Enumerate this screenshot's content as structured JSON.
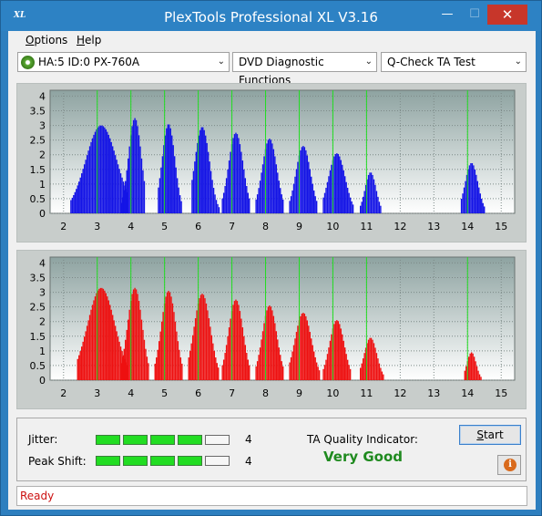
{
  "window": {
    "logo_text": "XL",
    "title": "PlexTools Professional XL V3.16",
    "min_glyph": "—",
    "max_glyph": "☐",
    "close_glyph": "✕"
  },
  "menu": {
    "options_first": "O",
    "options_rest": "ptions",
    "help_first": "H",
    "help_rest": "elp"
  },
  "toolbar": {
    "drive": "HA:5 ID:0  PX-760A",
    "function": "DVD Diagnostic Functions",
    "test": "Q-Check TA Test",
    "drive_icon": "disc-icon",
    "arrow_glyph": "⌄"
  },
  "charts": {
    "y_ticks": [
      "4",
      "3.5",
      "3",
      "2.5",
      "2",
      "1.5",
      "1",
      "0.5",
      "0"
    ],
    "x_ticks": [
      "2",
      "3",
      "4",
      "5",
      "6",
      "7",
      "8",
      "9",
      "10",
      "11",
      "12",
      "13",
      "14",
      "15"
    ]
  },
  "chart_data": [
    {
      "type": "bar",
      "name": "top",
      "color": "#1414e6",
      "xlim": [
        1.6,
        15.4
      ],
      "ylim": [
        0,
        4.2
      ],
      "x_ticks": [
        2,
        3,
        4,
        5,
        6,
        7,
        8,
        9,
        10,
        11,
        12,
        13,
        14,
        15
      ],
      "y_ticks": [
        0,
        0.5,
        1,
        1.5,
        2,
        2.5,
        3,
        3.5,
        4
      ],
      "reference_lines": [
        3,
        4,
        5,
        6,
        7,
        8,
        9,
        10,
        11,
        14
      ],
      "peaks": [
        {
          "center": 3.1,
          "height": 3.0,
          "start": 2.2,
          "end": 3.9
        },
        {
          "center": 4.1,
          "height": 3.25,
          "start": 3.7,
          "end": 4.4
        },
        {
          "center": 5.1,
          "height": 3.05,
          "start": 4.8,
          "end": 5.5
        },
        {
          "center": 6.1,
          "height": 2.95,
          "start": 5.8,
          "end": 6.6
        },
        {
          "center": 7.1,
          "height": 2.75,
          "start": 6.7,
          "end": 7.5
        },
        {
          "center": 8.1,
          "height": 2.55,
          "start": 7.7,
          "end": 8.5
        },
        {
          "center": 9.1,
          "height": 2.3,
          "start": 8.7,
          "end": 9.5
        },
        {
          "center": 10.1,
          "height": 2.05,
          "start": 9.7,
          "end": 10.6
        },
        {
          "center": 11.1,
          "height": 1.4,
          "start": 10.8,
          "end": 11.4
        },
        {
          "center": 14.1,
          "height": 1.72,
          "start": 13.8,
          "end": 14.5
        }
      ]
    },
    {
      "type": "bar",
      "name": "bottom",
      "color": "#ee1111",
      "xlim": [
        1.6,
        15.4
      ],
      "ylim": [
        0,
        4.2
      ],
      "x_ticks": [
        2,
        3,
        4,
        5,
        6,
        7,
        8,
        9,
        10,
        11,
        12,
        13,
        14,
        15
      ],
      "y_ticks": [
        0,
        0.5,
        1,
        1.5,
        2,
        2.5,
        3,
        3.5,
        4
      ],
      "reference_lines": [
        3,
        4,
        5,
        6,
        7,
        8,
        9,
        10,
        11,
        14
      ],
      "peaks": [
        {
          "center": 3.1,
          "height": 3.15,
          "start": 2.4,
          "end": 3.9
        },
        {
          "center": 4.1,
          "height": 3.15,
          "start": 3.7,
          "end": 4.5
        },
        {
          "center": 5.1,
          "height": 3.05,
          "start": 4.7,
          "end": 5.5
        },
        {
          "center": 6.1,
          "height": 2.95,
          "start": 5.7,
          "end": 6.6
        },
        {
          "center": 7.1,
          "height": 2.75,
          "start": 6.7,
          "end": 7.5
        },
        {
          "center": 8.1,
          "height": 2.55,
          "start": 7.7,
          "end": 8.5
        },
        {
          "center": 9.1,
          "height": 2.3,
          "start": 8.7,
          "end": 9.6
        },
        {
          "center": 10.1,
          "height": 2.05,
          "start": 9.7,
          "end": 10.5
        },
        {
          "center": 11.1,
          "height": 1.45,
          "start": 10.8,
          "end": 11.5
        },
        {
          "center": 14.1,
          "height": 0.95,
          "start": 13.9,
          "end": 14.4
        }
      ]
    }
  ],
  "stats": {
    "jitter_label": "Jitter:",
    "jitter_value": "4",
    "jitter_level": 4,
    "peak_label": "Peak Shift:",
    "peak_value": "4",
    "peak_level": 4,
    "segments_total": 5,
    "ta_label": "TA Quality Indicator:",
    "ta_value": "Very Good",
    "start_first": "S",
    "start_rest": "tart",
    "info_icon": "info-icon",
    "info_glyph": "i"
  },
  "status": {
    "text": "Ready"
  }
}
